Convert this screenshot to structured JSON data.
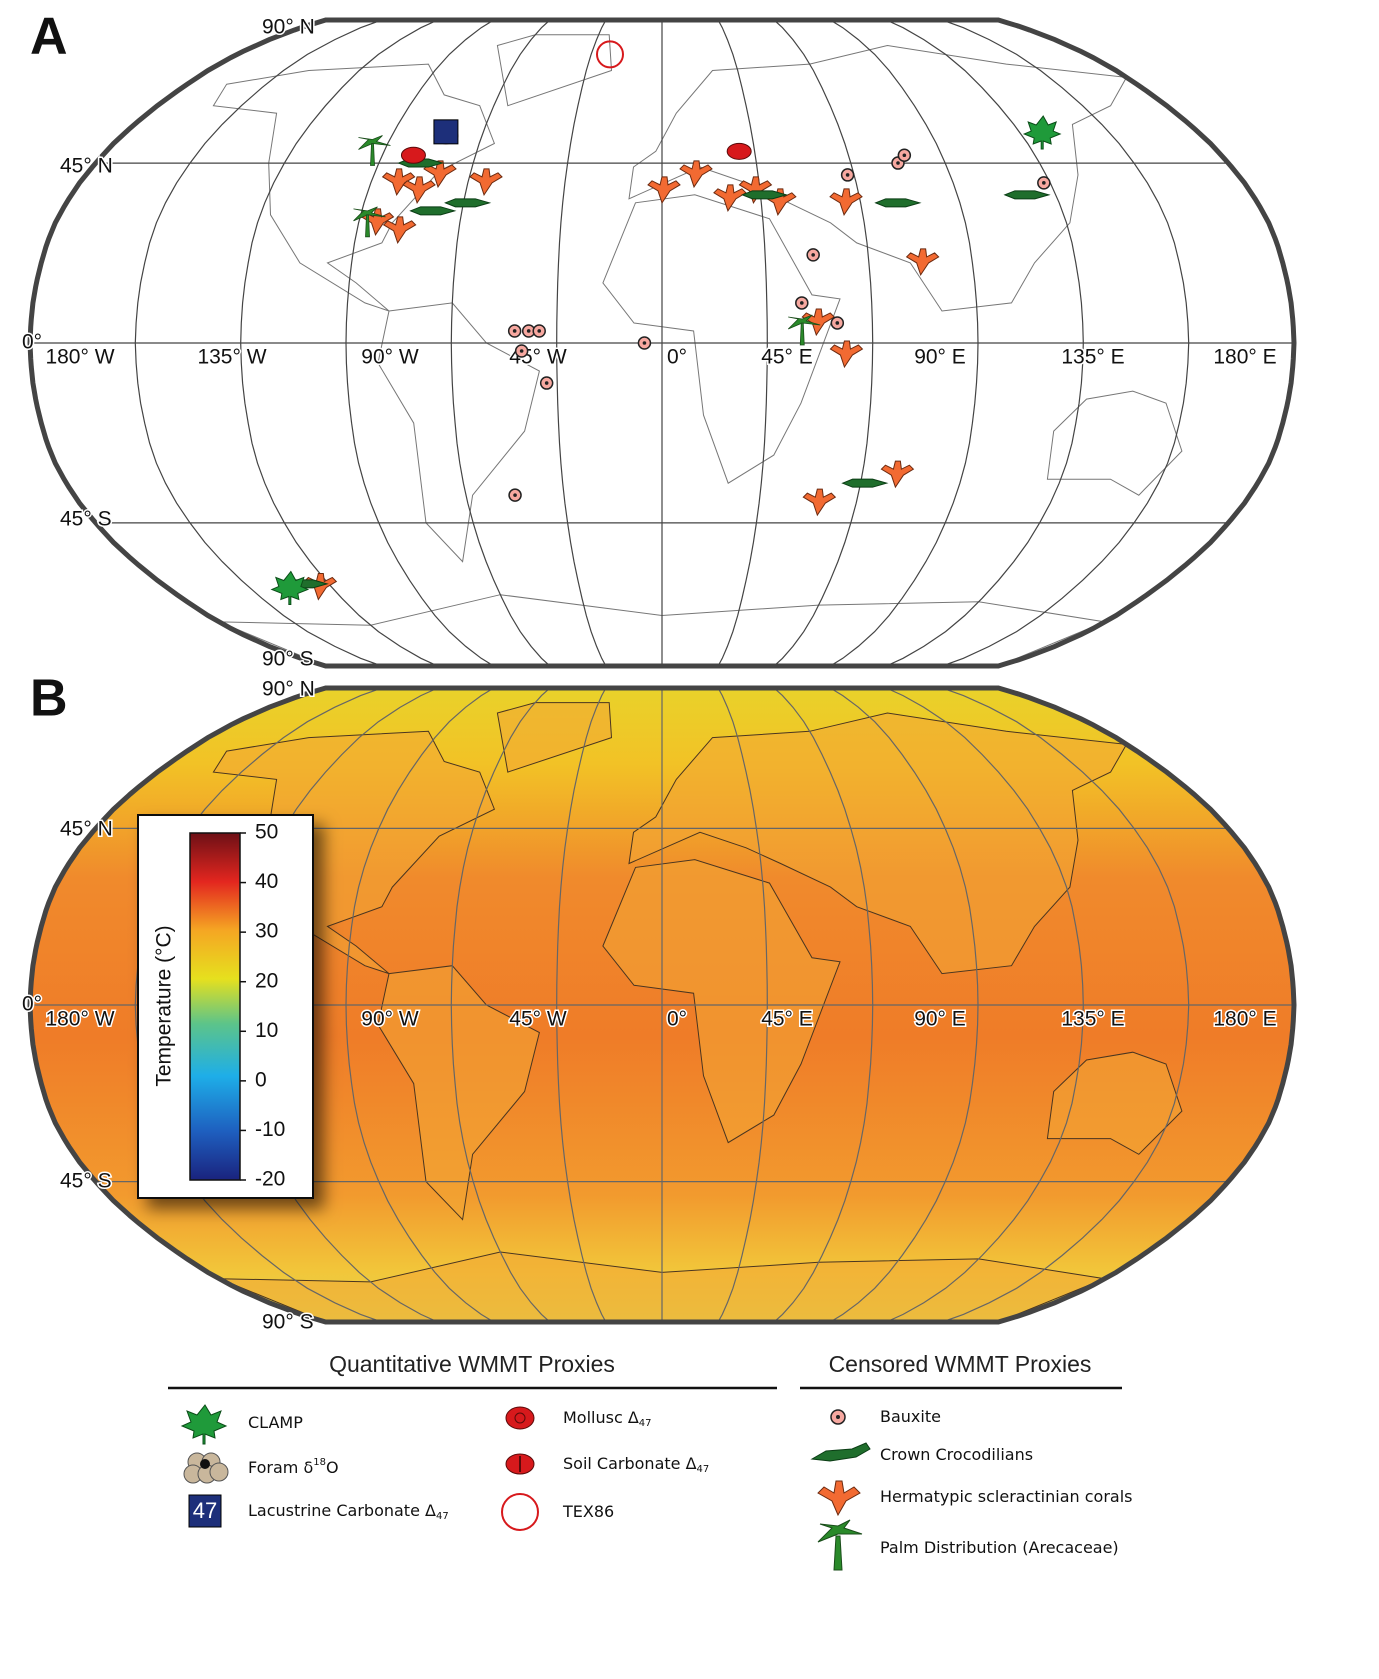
{
  "panels": [
    {
      "label": "A",
      "lat_labels": [
        "90° N",
        "45° N",
        "0°",
        "45° S",
        "90° S"
      ],
      "lon_labels": [
        "180° W",
        "135° W",
        "90° W",
        "45° W",
        "0°",
        "45° E",
        "90° E",
        "135° E",
        "180° E"
      ]
    },
    {
      "label": "B",
      "lat_labels": [
        "90° N",
        "45° N",
        "0°",
        "45° S",
        "90° S"
      ],
      "lon_labels": [
        "180° W",
        "90° W",
        "45° W",
        "0°",
        "45° E",
        "90° E",
        "135° E",
        "180° E"
      ]
    }
  ],
  "colorbar": {
    "label": "Temperature (°C)",
    "lim": [
      -20,
      50
    ],
    "ticks": [
      50,
      40,
      30,
      20,
      10,
      0,
      -10,
      -20
    ]
  },
  "legend": {
    "quantitative": {
      "title": "Quantitative WMMT Proxies",
      "items": [
        {
          "label": "CLAMP"
        },
        {
          "label": "Foram δ",
          "sup": "18",
          "label_end": "O"
        },
        {
          "label": "Lacustrine Carbonate Δ",
          "sub": "47",
          "icon_text": "47"
        },
        {
          "label": "Mollusc Δ",
          "sub": "47"
        },
        {
          "label": "Soil Carbonate Δ",
          "sub": "47"
        },
        {
          "label": "TEX86"
        }
      ]
    },
    "censored": {
      "title": "Censored WMMT Proxies",
      "items": [
        {
          "label": "Bauxite"
        },
        {
          "label": "Crown Crocodilians"
        },
        {
          "label": "Hermatypic scleractinian corals"
        },
        {
          "label": "Palm Distribution (Arecaceae)"
        }
      ]
    }
  }
}
